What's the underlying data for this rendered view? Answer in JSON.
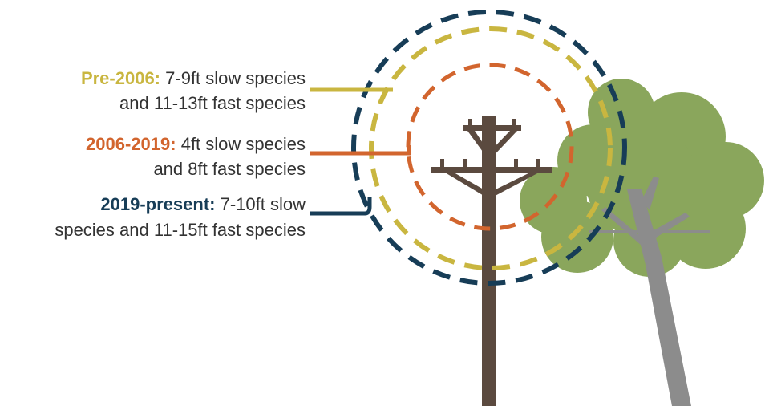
{
  "legend": [
    {
      "label": "Pre-2006:",
      "lines": [
        "7-9ft slow species",
        "and 11-13ft fast species"
      ]
    },
    {
      "label": "2006-2019:",
      "lines": [
        "4ft slow species",
        "and 8ft fast species"
      ]
    },
    {
      "label": "2019-present:",
      "lines": [
        "7-10ft slow",
        "species and 11-15ft fast species"
      ]
    }
  ]
}
